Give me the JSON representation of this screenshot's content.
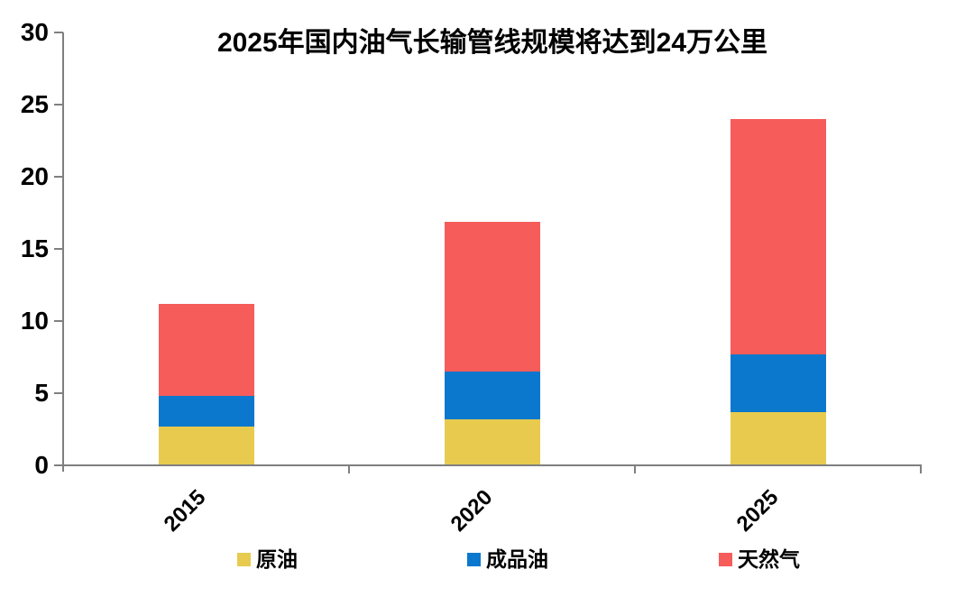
{
  "chart_data": {
    "type": "bar",
    "stacked": true,
    "title": "2025年国内油气长输管线规模将达到24万公里",
    "categories": [
      "2015",
      "2020",
      "2025"
    ],
    "series": [
      {
        "key": "crude-oil",
        "name": "原油",
        "color": "#E8CB4E",
        "values": [
          2.7,
          3.2,
          3.7
        ]
      },
      {
        "key": "refined-oil",
        "name": "成品油",
        "color": "#0B78CE",
        "values": [
          2.1,
          3.3,
          4.0
        ]
      },
      {
        "key": "natural-gas",
        "name": "天然气",
        "color": "#F55C5A",
        "values": [
          6.4,
          10.4,
          16.3
        ]
      }
    ],
    "totals": [
      11.2,
      16.9,
      24.0
    ],
    "unit": "万公里",
    "xlabel": "",
    "ylabel": "",
    "ylim": [
      0,
      30
    ],
    "y_ticks": [
      0,
      5,
      10,
      15,
      20,
      25,
      30
    ],
    "grid": false,
    "legend_position": "bottom",
    "x_tick_rotation_deg": 45
  },
  "colors": {
    "axis": "#7F7F7F",
    "text": "#000000",
    "background": "#FFFFFF"
  }
}
